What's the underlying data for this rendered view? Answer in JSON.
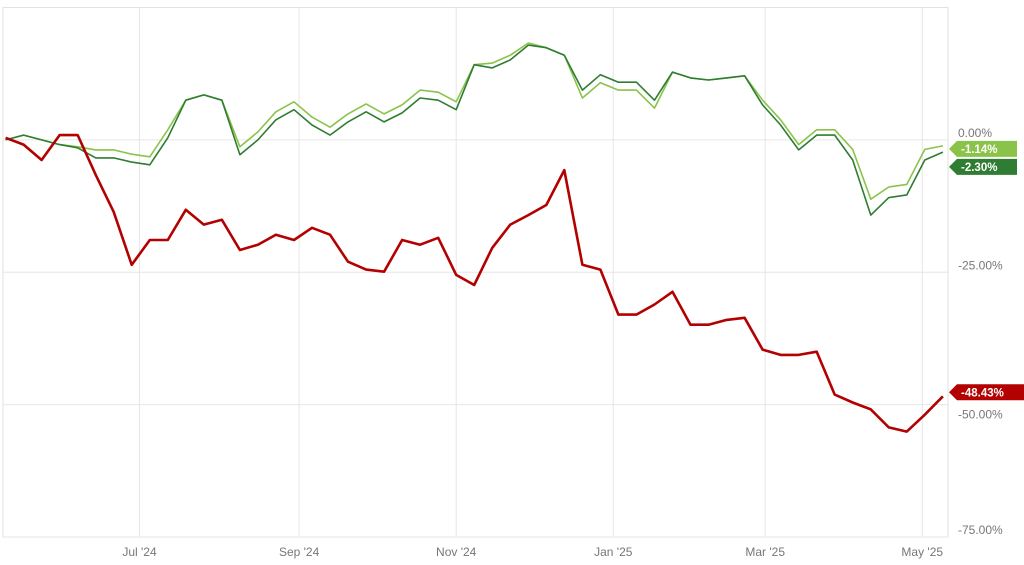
{
  "chart_data": {
    "type": "line",
    "title": "",
    "xlabel": "",
    "ylabel": "",
    "xlim": [
      "2024-05-09",
      "2025-05-11"
    ],
    "ylim": [
      -75,
      25
    ],
    "grid": true,
    "legend": "none",
    "y_axis_side": "right",
    "x_ticks": [
      {
        "date": "2024-07-01",
        "label": "Jul '24"
      },
      {
        "date": "2024-09-01",
        "label": "Sep '24"
      },
      {
        "date": "2024-11-01",
        "label": "Nov '24"
      },
      {
        "date": "2025-01-01",
        "label": "Jan '25"
      },
      {
        "date": "2025-03-01",
        "label": "Mar '25"
      },
      {
        "date": "2025-05-01",
        "label": "May '25"
      }
    ],
    "y_ticks": [
      {
        "value": 0,
        "label": "0.00%"
      },
      {
        "value": -25,
        "label": "-25.00%"
      },
      {
        "value": -50,
        "label": "-50.00%"
      },
      {
        "value": -75,
        "label": "-75.00%"
      }
    ],
    "x": [
      "2024-05-10",
      "2024-05-17",
      "2024-05-24",
      "2024-05-31",
      "2024-06-07",
      "2024-06-14",
      "2024-06-21",
      "2024-06-28",
      "2024-07-05",
      "2024-07-12",
      "2024-07-19",
      "2024-07-26",
      "2024-08-02",
      "2024-08-09",
      "2024-08-16",
      "2024-08-23",
      "2024-08-30",
      "2024-09-06",
      "2024-09-13",
      "2024-09-20",
      "2024-09-27",
      "2024-10-04",
      "2024-10-11",
      "2024-10-18",
      "2024-10-25",
      "2024-11-01",
      "2024-11-08",
      "2024-11-15",
      "2024-11-22",
      "2024-11-29",
      "2024-12-06",
      "2024-12-13",
      "2024-12-20",
      "2024-12-27",
      "2025-01-03",
      "2025-01-10",
      "2025-01-17",
      "2025-01-24",
      "2025-01-31",
      "2025-02-07",
      "2025-02-14",
      "2025-02-21",
      "2025-02-28",
      "2025-03-07",
      "2025-03-14",
      "2025-03-21",
      "2025-03-28",
      "2025-04-04",
      "2025-04-11",
      "2025-04-18",
      "2025-04-25",
      "2025-05-02",
      "2025-05-09"
    ],
    "series": [
      {
        "color": "#8bc34a",
        "end_label": "-1.14%",
        "values": [
          0,
          0.9,
          0,
          -0.9,
          -1.3,
          -1.9,
          -1.9,
          -2.7,
          -3.2,
          1.9,
          7.5,
          8.5,
          7.5,
          -1.3,
          1.5,
          5.3,
          7.2,
          4.3,
          2.4,
          4.9,
          6.8,
          4.9,
          6.6,
          9.4,
          9.0,
          7.2,
          14.2,
          14.5,
          16.0,
          18.3,
          17.4,
          16.0,
          7.9,
          10.8,
          9.4,
          9.4,
          6.0,
          12.8,
          11.7,
          11.3,
          11.7,
          12.1,
          7.5,
          3.8,
          -0.9,
          1.9,
          1.9,
          -1.8,
          -11.2,
          -8.9,
          -8.4,
          -1.8,
          -1.14
        ]
      },
      {
        "color": "#2e7d32",
        "end_label": "-2.30%",
        "values": [
          0,
          0.9,
          0,
          -0.9,
          -1.5,
          -3.4,
          -3.4,
          -4.2,
          -4.7,
          0.4,
          7.5,
          8.5,
          7.5,
          -2.8,
          0,
          3.8,
          5.7,
          2.8,
          0.9,
          3.4,
          5.3,
          3.4,
          5.1,
          7.9,
          7.5,
          5.7,
          14.2,
          13.6,
          15.1,
          17.9,
          17.4,
          16.0,
          9.4,
          12.3,
          10.9,
          10.9,
          7.5,
          12.8,
          11.7,
          11.3,
          11.7,
          12.1,
          6.6,
          2.8,
          -1.9,
          0.9,
          0.9,
          -3.8,
          -14.2,
          -10.9,
          -10.4,
          -3.8,
          -2.3
        ]
      },
      {
        "color": "#b30000",
        "end_label": "-48.43%",
        "values": [
          0.4,
          -0.9,
          -3.8,
          0.9,
          0.9,
          -6.6,
          -13.6,
          -23.6,
          -18.9,
          -18.9,
          -13.2,
          -16.0,
          -15.1,
          -20.8,
          -19.8,
          -17.9,
          -18.9,
          -16.6,
          -17.9,
          -23.0,
          -24.5,
          -24.9,
          -18.9,
          -19.8,
          -18.5,
          -25.5,
          -27.4,
          -20.4,
          -16.0,
          -14.2,
          -12.3,
          -5.7,
          -23.6,
          -24.5,
          -33.0,
          -33.0,
          -31.1,
          -28.7,
          -34.9,
          -34.9,
          -34.0,
          -33.6,
          -39.6,
          -40.6,
          -40.6,
          -40.0,
          -48.1,
          -49.6,
          -50.9,
          -54.3,
          -55.1,
          -51.9,
          -48.43
        ]
      }
    ]
  }
}
